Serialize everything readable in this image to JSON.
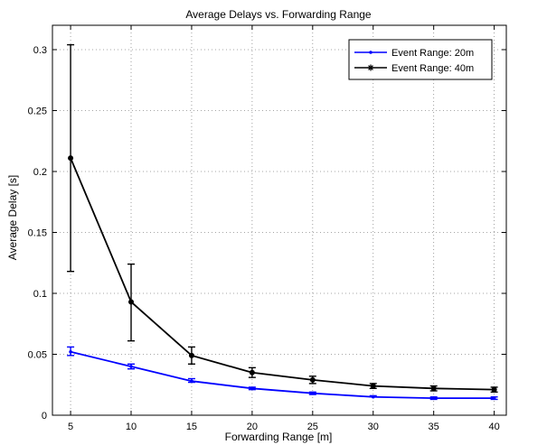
{
  "chart_data": {
    "type": "line",
    "title": "Average Delays vs. Forwarding Range",
    "xlabel": "Forwarding Range [m]",
    "ylabel": "Average Delay [s]",
    "xlim": [
      3.5,
      41
    ],
    "ylim": [
      0,
      0.32
    ],
    "x": [
      5,
      10,
      15,
      20,
      25,
      30,
      35,
      40
    ],
    "xticks": [
      5,
      10,
      15,
      20,
      25,
      30,
      35,
      40
    ],
    "xtick_labels": [
      "5",
      "10",
      "15",
      "20",
      "25",
      "30",
      "35",
      "40"
    ],
    "yticks": [
      0,
      0.05,
      0.1,
      0.15,
      0.2,
      0.25,
      0.3
    ],
    "ytick_labels": [
      "0",
      "0.05",
      "0.1",
      "0.15",
      "0.2",
      "0.25",
      "0.3"
    ],
    "grid": true,
    "legend_position": "top-right",
    "series": [
      {
        "name": "Event Range: 20m",
        "color": "#0000ff",
        "marker": "dot",
        "values": [
          0.052,
          0.04,
          0.028,
          0.022,
          0.018,
          0.015,
          0.014,
          0.014
        ],
        "err_low": [
          0.049,
          0.038,
          0.027,
          0.021,
          0.017,
          0.015,
          0.013,
          0.013
        ],
        "err_high": [
          0.056,
          0.042,
          0.03,
          0.023,
          0.019,
          0.016,
          0.015,
          0.015
        ]
      },
      {
        "name": "Event Range: 40m",
        "color": "#000000",
        "marker": "star",
        "values": [
          0.211,
          0.093,
          0.049,
          0.035,
          0.029,
          0.024,
          0.022,
          0.021
        ],
        "err_low": [
          0.118,
          0.061,
          0.042,
          0.031,
          0.026,
          0.022,
          0.02,
          0.019
        ],
        "err_high": [
          0.304,
          0.124,
          0.056,
          0.039,
          0.032,
          0.026,
          0.024,
          0.023
        ]
      }
    ]
  }
}
